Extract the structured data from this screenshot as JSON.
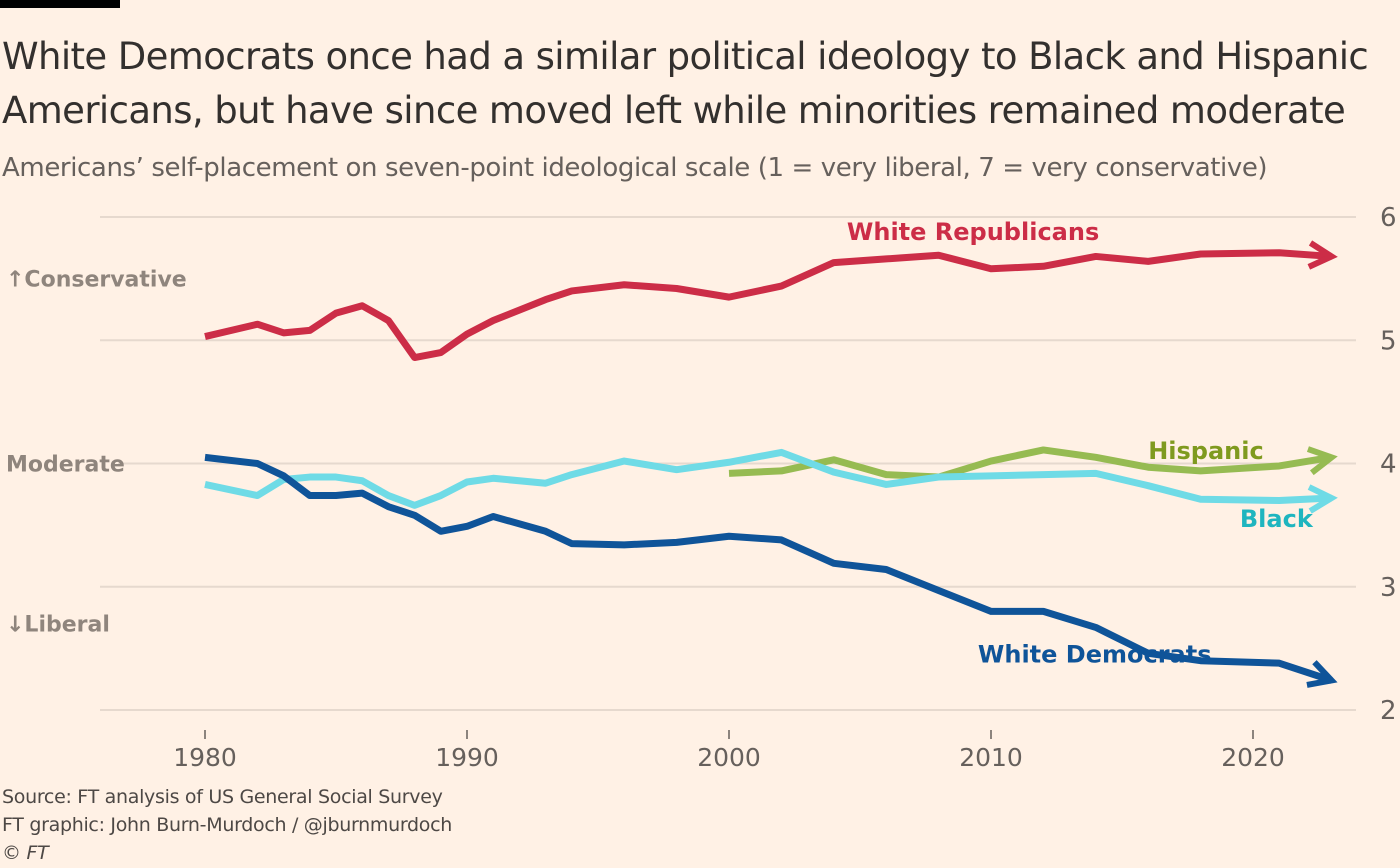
{
  "header": {
    "title": "White Democrats once had a similar political ideology to Black and Hispanic Americans, but have since moved left while minorities remained moderate",
    "subtitle": "Americans’ self-placement on seven-point ideological scale (1 = very liberal, 7 = very conservative)"
  },
  "footer": {
    "source": "Source: FT analysis of US General Social Survey",
    "credit": "FT graphic: John Burn-Murdoch / @jburnmurdoch",
    "copyright": "© FT"
  },
  "chart_data": {
    "type": "line",
    "title": "White Democrats once had a similar political ideology to Black and Hispanic Americans, but have since moved left while minorities remained moderate",
    "subtitle": "Americans’ self-placement on seven-point ideological scale (1 = very liberal, 7 = very conservative)",
    "xlabel": "",
    "ylabel": "",
    "xlim": [
      1976,
      2024
    ],
    "ylim": [
      2,
      6
    ],
    "x_ticks": [
      1980,
      1990,
      2000,
      2010,
      2020
    ],
    "y_ticks": [
      2,
      3,
      4,
      5,
      6
    ],
    "y_axis_side": "right",
    "grid": true,
    "side_labels": [
      {
        "text": "↑Conservative",
        "value": 5.5
      },
      {
        "text": "Moderate",
        "value": 4.0
      },
      {
        "text": "↓Liberal",
        "value": 2.7
      }
    ],
    "series": [
      {
        "name": "White Republicans",
        "color": "#cc2d47",
        "label_color": "#cc2d47",
        "x": [
          1980,
          1982,
          1983,
          1984,
          1985,
          1986,
          1987,
          1988,
          1989,
          1990,
          1991,
          1993,
          1994,
          1996,
          1998,
          2000,
          2002,
          2004,
          2006,
          2008,
          2010,
          2012,
          2014,
          2016,
          2018,
          2021,
          2023
        ],
        "values": [
          5.03,
          5.13,
          5.06,
          5.08,
          5.22,
          5.28,
          5.16,
          4.86,
          4.9,
          5.05,
          5.16,
          5.33,
          5.4,
          5.45,
          5.42,
          5.35,
          5.44,
          5.63,
          5.66,
          5.69,
          5.58,
          5.6,
          5.68,
          5.64,
          5.7,
          5.71,
          5.68
        ]
      },
      {
        "name": "Hispanic",
        "color": "#96bb52",
        "label_color": "#7f9a1f",
        "x": [
          2000,
          2002,
          2004,
          2006,
          2008,
          2010,
          2012,
          2014,
          2016,
          2018,
          2021,
          2023
        ],
        "values": [
          3.92,
          3.94,
          4.03,
          3.91,
          3.89,
          4.02,
          4.11,
          4.05,
          3.97,
          3.94,
          3.98,
          4.05
        ]
      },
      {
        "name": "Black",
        "color": "#6fdbe6",
        "label_color": "#1fb5bf",
        "x": [
          1980,
          1982,
          1983,
          1984,
          1985,
          1986,
          1987,
          1988,
          1989,
          1990,
          1991,
          1993,
          1994,
          1996,
          1998,
          2000,
          2002,
          2004,
          2006,
          2008,
          2010,
          2012,
          2014,
          2016,
          2018,
          2021,
          2023
        ],
        "values": [
          3.83,
          3.74,
          3.87,
          3.89,
          3.89,
          3.86,
          3.74,
          3.66,
          3.74,
          3.85,
          3.88,
          3.84,
          3.91,
          4.02,
          3.95,
          4.01,
          4.09,
          3.93,
          3.83,
          3.89,
          3.9,
          3.91,
          3.92,
          3.82,
          3.71,
          3.7,
          3.72
        ]
      },
      {
        "name": "White Democrats",
        "color": "#0f5499",
        "label_color": "#0f5499",
        "x": [
          1980,
          1982,
          1983,
          1984,
          1985,
          1986,
          1987,
          1988,
          1989,
          1990,
          1991,
          1993,
          1994,
          1996,
          1998,
          2000,
          2002,
          2004,
          2006,
          2008,
          2010,
          2012,
          2014,
          2016,
          2018,
          2021,
          2023
        ],
        "values": [
          4.05,
          4.0,
          3.9,
          3.74,
          3.74,
          3.76,
          3.65,
          3.58,
          3.45,
          3.49,
          3.57,
          3.45,
          3.35,
          3.34,
          3.36,
          3.41,
          3.38,
          3.19,
          3.14,
          2.97,
          2.8,
          2.8,
          2.67,
          2.46,
          2.4,
          2.38,
          2.24
        ]
      }
    ],
    "annotations": [
      {
        "text": "White Republicans",
        "series": "White Republicans",
        "x": 2004.5,
        "y": 5.88
      },
      {
        "text": "Hispanic",
        "series": "Hispanic",
        "x": 2016,
        "y": 4.1
      },
      {
        "text": "Black",
        "series": "Black",
        "x": 2019.5,
        "y": 3.55
      },
      {
        "text": "White Democrats",
        "series": "White Democrats",
        "x": 2009.5,
        "y": 2.45
      }
    ]
  }
}
